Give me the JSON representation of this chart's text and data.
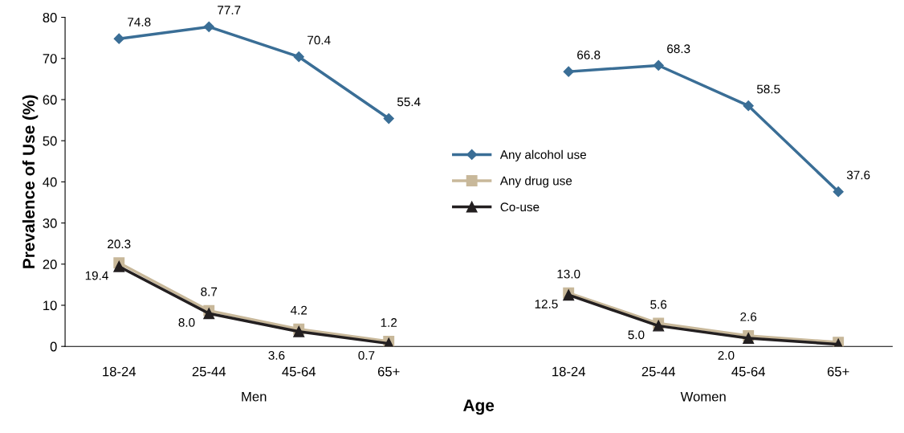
{
  "chart_data": {
    "type": "line",
    "xlabel": "Age",
    "ylabel": "Prevalence of Use (%)",
    "categories": [
      "18-24",
      "25-44",
      "45-64",
      "65+",
      null,
      "18-24",
      "25-44",
      "45-64",
      "65+"
    ],
    "ylim": [
      0,
      80
    ],
    "yticks": [
      0,
      10,
      20,
      30,
      40,
      50,
      60,
      70,
      80
    ],
    "grid": false,
    "legend": "center",
    "annotations": [
      "Men",
      "Women"
    ],
    "series": [
      {
        "name": "Any alcohol use",
        "color": "#3a6e96",
        "marker": "diamond",
        "values": [
          74.8,
          77.7,
          70.4,
          55.4,
          null,
          66.8,
          68.3,
          58.5,
          37.6
        ],
        "value_labels": [
          "74.8",
          "77.7",
          "70.4",
          "55.4",
          null,
          "66.8",
          "68.3",
          "58.5",
          "37.6"
        ]
      },
      {
        "name": "Any drug use",
        "color": "#c8b89a",
        "marker": "square",
        "values": [
          20.3,
          8.7,
          4.2,
          1.2,
          null,
          13.0,
          5.6,
          2.6,
          1.0
        ],
        "value_labels": [
          "20.3",
          "8.7",
          "4.2",
          "1.2",
          null,
          "13.0",
          "5.6",
          "2.6",
          null
        ]
      },
      {
        "name": "Co-use",
        "color": "#231f20",
        "marker": "triangle",
        "values": [
          19.4,
          8.0,
          3.6,
          0.7,
          null,
          12.5,
          5.0,
          2.0,
          0.5
        ],
        "value_labels": [
          "19.4",
          "8.0",
          "3.6",
          "0.7",
          null,
          "12.5",
          "5.0",
          "2.0",
          null
        ]
      }
    ]
  }
}
